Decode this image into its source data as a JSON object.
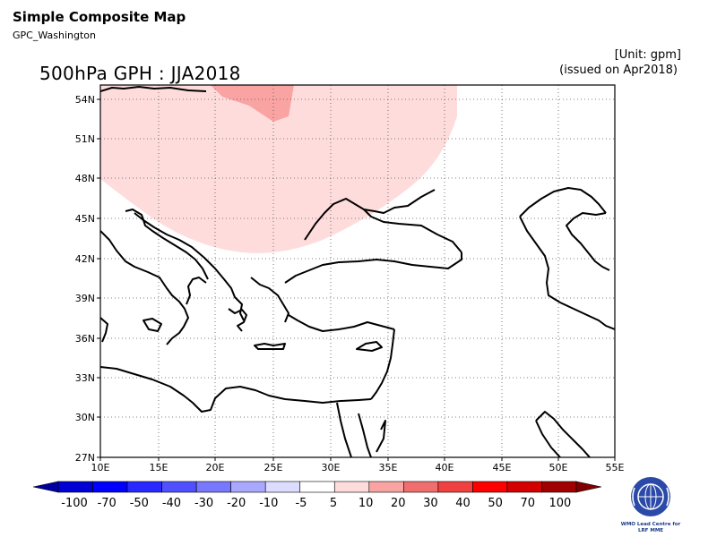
{
  "header": {
    "title": "Simple Composite Map",
    "subtitle": "GPC_Washington"
  },
  "map": {
    "title": "500hPa GPH : JJA2018",
    "unit_label": "[Unit: gpm]",
    "issued_label": "(issued on Apr2018)",
    "lon_range": [
      10,
      55
    ],
    "lat_range": [
      27,
      54
    ],
    "lon_ticks": [
      "10E",
      "15E",
      "20E",
      "25E",
      "30E",
      "35E",
      "40E",
      "45E",
      "50E",
      "55E"
    ],
    "lat_ticks": [
      "27N",
      "30N",
      "33N",
      "36N",
      "39N",
      "42N",
      "45N",
      "48N",
      "51N",
      "54N"
    ],
    "gridlines": true,
    "anomaly_regions": [
      {
        "category": "5 to 10",
        "color": "#ffdcdc"
      },
      {
        "category": "10 to 20",
        "color": "#f9a3a3"
      }
    ]
  },
  "colorbar": {
    "labels": [
      "-100",
      "-70",
      "-50",
      "-40",
      "-30",
      "-20",
      "-10",
      "-5",
      "5",
      "10",
      "20",
      "30",
      "40",
      "50",
      "70",
      "100"
    ],
    "colors": [
      "#0000a0",
      "#0000d4",
      "#0000ff",
      "#2828ff",
      "#5050ff",
      "#7878ff",
      "#a8a8ff",
      "#dcdcff",
      "#ffffff",
      "#ffdcdc",
      "#f9a3a3",
      "#f06e6e",
      "#f04040",
      "#ff0000",
      "#d40000",
      "#a00000",
      "#800000"
    ]
  },
  "logo": {
    "line1": "WMO Lead Centre for",
    "line2": "LRF MME"
  }
}
